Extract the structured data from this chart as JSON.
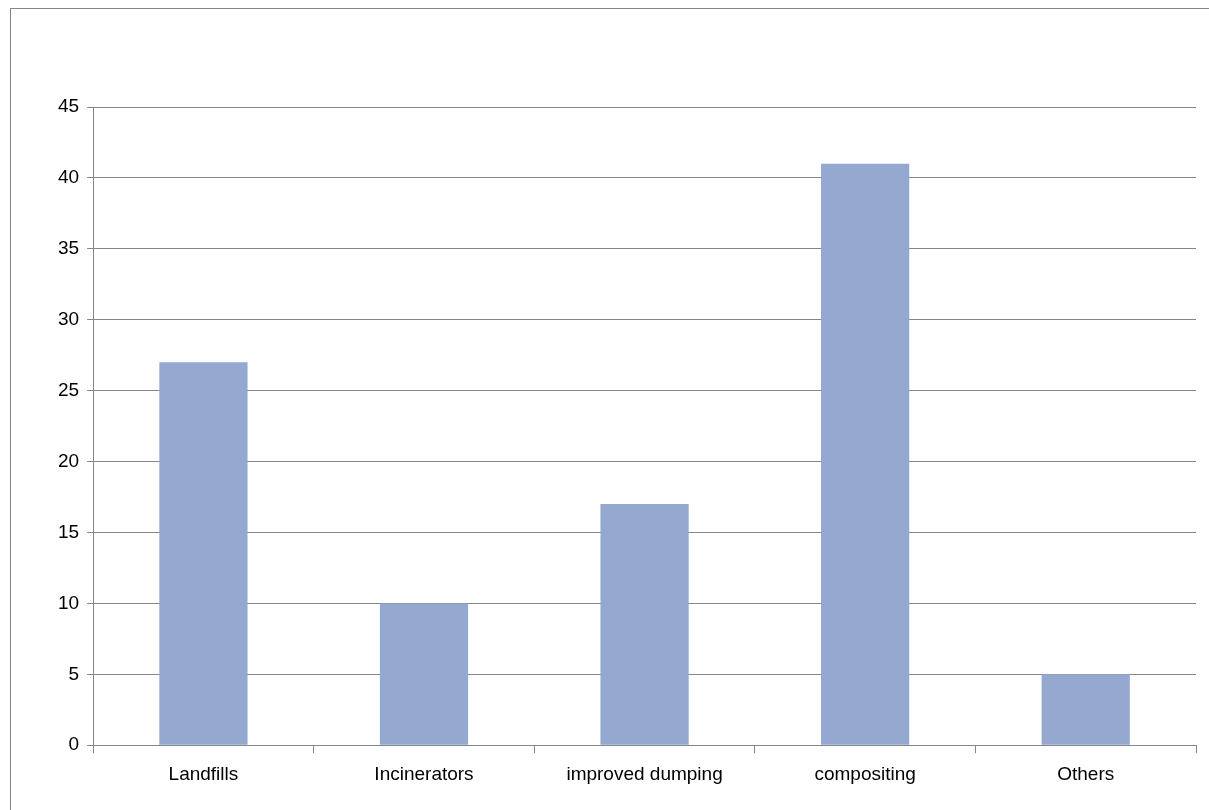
{
  "chart_data": {
    "type": "bar",
    "categories": [
      "Landfills",
      "Incinerators",
      "improved dumping",
      "compositing",
      "Others"
    ],
    "values": [
      27,
      10,
      17,
      41,
      5
    ],
    "color": "#95a9d0",
    "ylim": [
      0,
      45
    ],
    "yticks": [
      0,
      5,
      10,
      15,
      20,
      25,
      30,
      35,
      40,
      45
    ],
    "grid": "y",
    "legend": false
  }
}
